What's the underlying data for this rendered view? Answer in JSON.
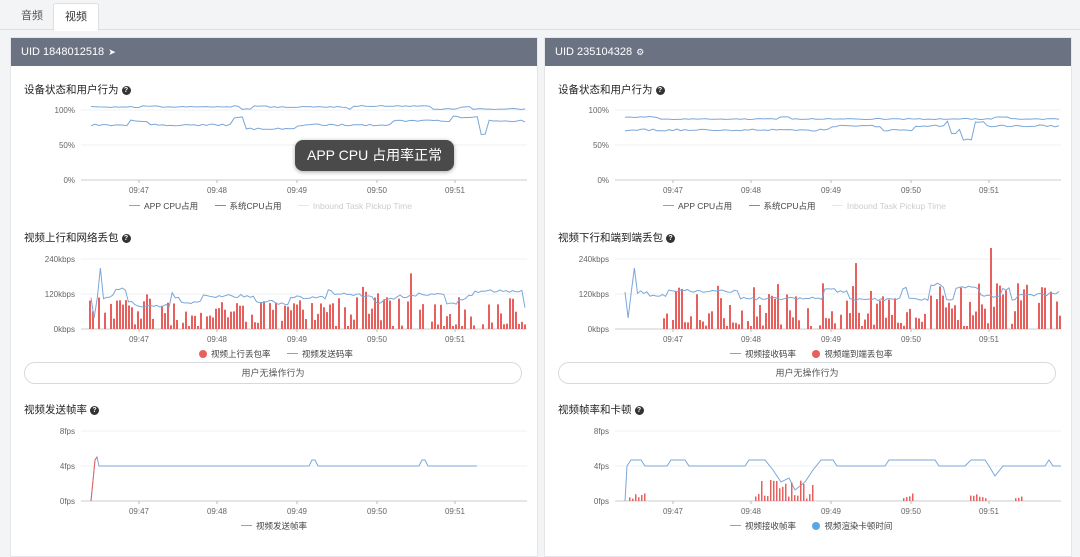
{
  "tabs": [
    {
      "label": "音频",
      "active": false
    },
    {
      "label": "视频",
      "active": true
    }
  ],
  "time_ticks": [
    "09:47",
    "09:48",
    "09:49",
    "09:50",
    "09:51"
  ],
  "colors": {
    "line_blue": "#7aa7d9",
    "line_dark": "#7e8eaa",
    "bar_red": "#e8605e",
    "header": "#6b7383",
    "dot_blue": "#5ba7e6"
  },
  "tooltip": "APP CPU 占用率正常",
  "panels": [
    {
      "uid": "UID 1848012518",
      "uid_icon": "paper-plane-icon",
      "cpu": {
        "title": "设备状态和用户行为",
        "y_ticks": [
          "100%",
          "50%",
          "0%"
        ],
        "legend": [
          "APP CPU占用",
          "系统CPU占用",
          "Inbound Task Pickup Time"
        ]
      },
      "net": {
        "title": "视频上行和网络丢包",
        "y_ticks": [
          "240kbps",
          "120kbps",
          "0kbps"
        ],
        "legend": [
          "视频上行丢包率",
          "视频发送码率"
        ]
      },
      "action_label": "用户无操作行为",
      "fps": {
        "title": "视频发送帧率",
        "y_ticks": [
          "8fps",
          "4fps",
          "0fps"
        ],
        "legend": [
          "视频发送帧率"
        ]
      }
    },
    {
      "uid": "UID 235104328",
      "uid_icon": "android-icon",
      "cpu": {
        "title": "设备状态和用户行为",
        "y_ticks": [
          "100%",
          "50%",
          "0%"
        ],
        "legend": [
          "APP CPU占用",
          "系统CPU占用",
          "Inbound Task Pickup Time"
        ]
      },
      "net": {
        "title": "视频下行和端到端丢包",
        "y_ticks": [
          "240kbps",
          "120kbps",
          "0kbps"
        ],
        "legend": [
          "视频接收码率",
          "视频端到端丢包率"
        ]
      },
      "action_label": "用户无操作行为",
      "fps": {
        "title": "视频帧率和卡顿",
        "y_ticks": [
          "8fps",
          "4fps",
          "0fps"
        ],
        "legend": [
          "视频接收帧率",
          "视频渲染卡顿时间"
        ]
      }
    }
  ]
}
